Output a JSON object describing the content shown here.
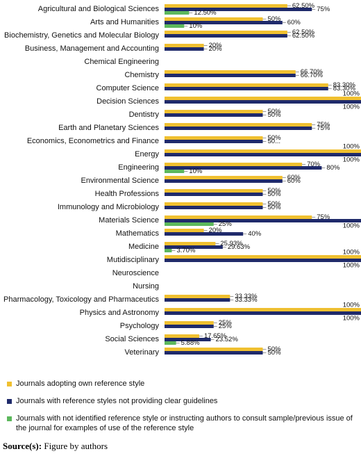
{
  "chart_data": {
    "type": "bar",
    "orientation": "horizontal",
    "categories": [
      "Agricultural and Biological Sciences",
      "Arts and Humanities",
      "Biochemistry, Genetics and Molecular Biology",
      "Business, Management and Accounting",
      "Chemical Engineering",
      "Chemistry",
      "Computer Science",
      "Decision Sciences",
      "Dentistry",
      "Earth and Planetary Sciences",
      "Economics, Econometrics and Finance",
      "Energy",
      "Engineering",
      "Environmental Science",
      "Health Professions",
      "Immunology and Microbiology",
      "Materials Science",
      "Mathematics",
      "Medicine",
      "Mutidisciplinary",
      "Neuroscience",
      "Nursing",
      "Pharmacology, Toxicology and Pharmaceutics",
      "Physics and Astronomy",
      "Psychology",
      "Social Sciences",
      "Veterinary"
    ],
    "xlim": [
      0,
      100
    ],
    "series": [
      {
        "name": "Journals adopting own reference style",
        "color": "#f0c030",
        "values": [
          62.5,
          50,
          62.5,
          20,
          null,
          66.7,
          83.3,
          100,
          50,
          75,
          50,
          100,
          70,
          60,
          50,
          50,
          75,
          20,
          25.93,
          100,
          null,
          null,
          33.33,
          100,
          25,
          17.65,
          50
        ],
        "value_labels": [
          "62.50%",
          "50%",
          "62.50%",
          "20%",
          null,
          "66.70%",
          "83.30%",
          "100%",
          "50%",
          "75%",
          "50%",
          "100%",
          "70%",
          "60%",
          "50%",
          "50%",
          "75%",
          "20%",
          "25.93%",
          "100%",
          null,
          null,
          "33.33%",
          "100%",
          "25%",
          "17.65%",
          "50%"
        ]
      },
      {
        "name": "Journals with reference styles not providing clear guidelines",
        "color": "#1f2a6b",
        "values": [
          75,
          60,
          62.5,
          20,
          null,
          66.7,
          83.3,
          100,
          50,
          75,
          50,
          100,
          80,
          60,
          50,
          50,
          100,
          40,
          29.63,
          100,
          null,
          null,
          33.33,
          100,
          25,
          23.52,
          50
        ],
        "value_labels": [
          "75%",
          "60%",
          "62.50%",
          "20%",
          null,
          "66.70%",
          "83.30%",
          "100%",
          "50%",
          "75%",
          "50...",
          "100%",
          "80%",
          "60%",
          "50%",
          "50%",
          "100%",
          "40%",
          "29.63%",
          "100%",
          null,
          null,
          "33.33%",
          "100%",
          "25%",
          "23.52%",
          "50%"
        ]
      },
      {
        "name": "Journals with not identified reference style or instructing authors to consult sample/previous issue of the journal for examples of use of the reference style",
        "color": "#5cb85c",
        "values": [
          12.5,
          10,
          null,
          null,
          null,
          null,
          null,
          null,
          null,
          null,
          null,
          null,
          10,
          null,
          null,
          null,
          25,
          null,
          3.7,
          null,
          null,
          null,
          null,
          null,
          null,
          5.88,
          null
        ],
        "value_labels": [
          "12.50%",
          "10%",
          null,
          null,
          null,
          null,
          null,
          null,
          null,
          null,
          null,
          null,
          "10%",
          null,
          null,
          null,
          "25%",
          null,
          "3.70%",
          null,
          null,
          null,
          null,
          null,
          null,
          "5.88%",
          null
        ]
      }
    ]
  },
  "source_label": "Source(s):",
  "source_text": "Figure by authors"
}
